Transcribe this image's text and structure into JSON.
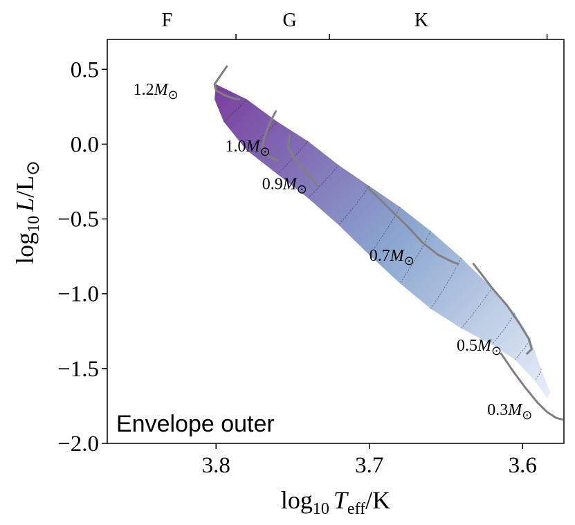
{
  "chart_data": {
    "type": "scatter",
    "title": "",
    "panel_label": "Envelope outer",
    "xlabel_parts": {
      "base": "log",
      "sub": "10",
      "var": "T",
      "var_sub": "eff",
      "unit": "/K"
    },
    "ylabel_parts": {
      "base": "log",
      "sub": "10",
      "var": "L",
      "unit": "/L",
      "sym": "⊙"
    },
    "xlim": [
      3.871,
      3.573
    ],
    "ylim": [
      -2.0,
      0.7
    ],
    "x_inverted": true,
    "xticks": [
      3.8,
      3.7,
      3.6
    ],
    "xtick_labels": [
      "3.8",
      "3.7",
      "3.6"
    ],
    "yticks": [
      0.5,
      0.0,
      -0.5,
      -1.0,
      -1.5,
      -2.0
    ],
    "ytick_labels": [
      "0.5",
      "0.0",
      "−0.5",
      "−1.0",
      "−1.5",
      "−2.0"
    ],
    "spectral_classes": {
      "labels": [
        "F",
        "G",
        "K"
      ],
      "label_positions": [
        3.832,
        3.752,
        3.666
      ],
      "boundaries": [
        3.787,
        3.726,
        3.584
      ]
    },
    "colormap": {
      "high": "#7a3d9e",
      "mid": "#8aa6cf",
      "low": "#eef3fa"
    },
    "band": {
      "upper_edge": [
        [
          3.8,
          0.4
        ],
        [
          3.78,
          0.3
        ],
        [
          3.76,
          0.15
        ],
        [
          3.74,
          0.02
        ],
        [
          3.72,
          -0.14
        ],
        [
          3.7,
          -0.28
        ],
        [
          3.68,
          -0.42
        ],
        [
          3.66,
          -0.58
        ],
        [
          3.64,
          -0.76
        ],
        [
          3.62,
          -0.96
        ],
        [
          3.605,
          -1.13
        ],
        [
          3.595,
          -1.3
        ],
        [
          3.588,
          -1.5
        ],
        [
          3.582,
          -1.66
        ]
      ],
      "lower_edge": [
        [
          3.584,
          -1.7
        ],
        [
          3.592,
          -1.58
        ],
        [
          3.605,
          -1.44
        ],
        [
          3.62,
          -1.34
        ],
        [
          3.64,
          -1.23
        ],
        [
          3.66,
          -1.1
        ],
        [
          3.68,
          -0.93
        ],
        [
          3.7,
          -0.74
        ],
        [
          3.72,
          -0.54
        ],
        [
          3.74,
          -0.36
        ],
        [
          3.76,
          -0.2
        ],
        [
          3.78,
          -0.04
        ],
        [
          3.795,
          0.15
        ],
        [
          3.801,
          0.3
        ]
      ]
    },
    "tracks": [
      {
        "mass_label": "1.2",
        "points": [
          [
            3.793,
            0.52
          ],
          [
            3.797,
            0.46
          ],
          [
            3.801,
            0.4
          ],
          [
            3.8,
            0.36
          ],
          [
            3.795,
            0.33
          ],
          [
            3.79,
            0.31
          ],
          [
            3.785,
            0.3
          ]
        ]
      },
      {
        "mass_label": "1.0",
        "points": [
          [
            3.761,
            0.22
          ],
          [
            3.765,
            0.14
          ],
          [
            3.768,
            0.06
          ],
          [
            3.77,
            -0.02
          ],
          [
            3.766,
            -0.08
          ],
          [
            3.76,
            -0.11
          ]
        ]
      },
      {
        "mass_label": "0.9",
        "points": [
          [
            3.752,
            0.06
          ],
          [
            3.753,
            -0.02
          ],
          [
            3.748,
            -0.11
          ],
          [
            3.74,
            -0.2
          ],
          [
            3.733,
            -0.29
          ]
        ]
      },
      {
        "mass_label": "0.7",
        "points": [
          [
            3.702,
            -0.28
          ],
          [
            3.688,
            -0.42
          ],
          [
            3.675,
            -0.55
          ],
          [
            3.665,
            -0.66
          ],
          [
            3.655,
            -0.74
          ],
          [
            3.645,
            -0.79
          ],
          [
            3.642,
            -0.8
          ]
        ]
      },
      {
        "mass_label": "0.5",
        "points": [
          [
            3.632,
            -0.8
          ],
          [
            3.62,
            -0.96
          ],
          [
            3.61,
            -1.08
          ],
          [
            3.602,
            -1.2
          ],
          [
            3.596,
            -1.3
          ],
          [
            3.594,
            -1.37
          ],
          [
            3.597,
            -1.4
          ]
        ]
      },
      {
        "mass_label": "0.3",
        "points": [
          [
            3.614,
            -1.4
          ],
          [
            3.606,
            -1.52
          ],
          [
            3.598,
            -1.63
          ],
          [
            3.59,
            -1.73
          ],
          [
            3.584,
            -1.79
          ],
          [
            3.578,
            -1.83
          ],
          [
            3.574,
            -1.84
          ]
        ]
      }
    ],
    "mass_labels": [
      {
        "text": "1.2",
        "sym": "M",
        "sub": "⊙",
        "x": 3.854,
        "y": 0.33
      },
      {
        "text": "1.0",
        "sym": "M",
        "sub": "⊙",
        "x": 3.794,
        "y": -0.05
      },
      {
        "text": "0.9",
        "sym": "M",
        "sub": "⊙",
        "x": 3.77,
        "y": -0.3
      },
      {
        "text": "0.7",
        "sym": "M",
        "sub": "⊙",
        "x": 3.7,
        "y": -0.78
      },
      {
        "text": "0.5",
        "sym": "M",
        "sub": "⊙",
        "x": 3.643,
        "y": -1.38
      },
      {
        "text": "0.3",
        "sym": "M",
        "sub": "⊙",
        "x": 3.623,
        "y": -1.81
      }
    ]
  }
}
